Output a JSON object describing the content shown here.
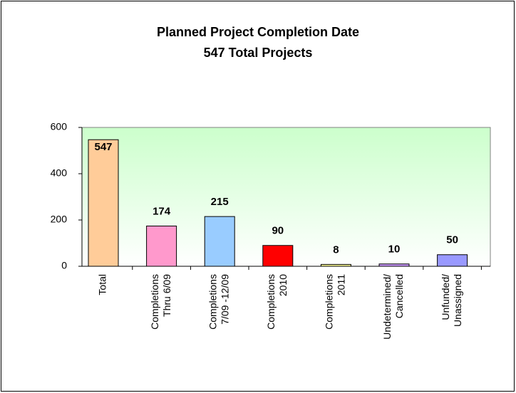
{
  "chart_data": {
    "type": "bar",
    "title": "Planned Project Completion Date",
    "subtitle": "547 Total Projects",
    "categories": [
      [
        "Total"
      ],
      [
        "Completions",
        "Thru 6/09"
      ],
      [
        "Completions",
        "7/09 -12/09"
      ],
      [
        "Completions",
        "2010"
      ],
      [
        "Completions",
        "2011"
      ],
      [
        "Undetermined/",
        "Cancelled"
      ],
      [
        "Unfunded/",
        "Unassigned"
      ]
    ],
    "values": [
      547,
      174,
      215,
      90,
      8,
      10,
      50
    ],
    "colors": [
      "#ffcc99",
      "#ff99cc",
      "#99ccff",
      "#ff0000",
      "#ffff99",
      "#cc99ff",
      "#9999ff"
    ],
    "ylim": [
      0,
      600
    ],
    "yticks": [
      0,
      200,
      400,
      600
    ],
    "grid": false
  }
}
